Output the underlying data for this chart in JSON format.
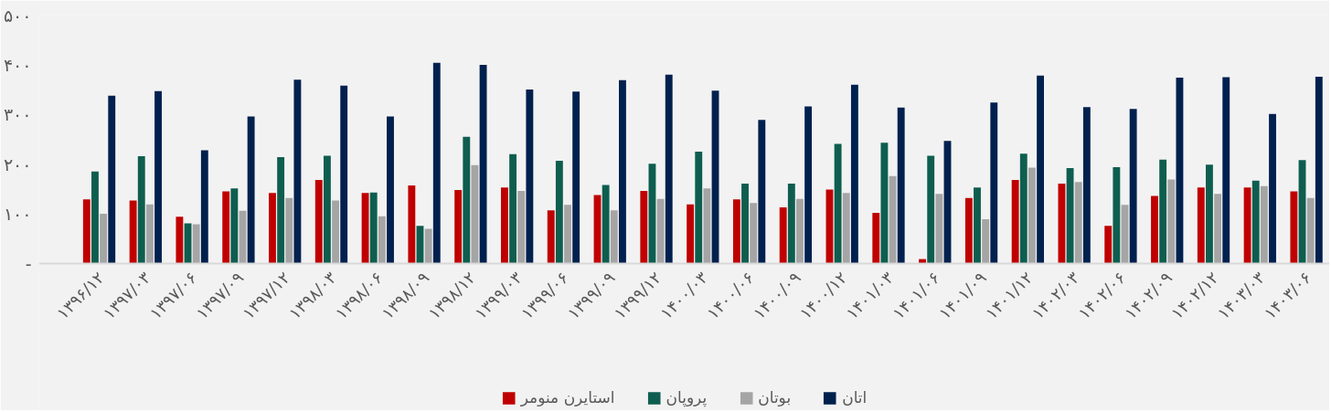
{
  "chart_data": {
    "type": "bar",
    "categories": [
      "۱۳۹۶/۱۲",
      "۱۳۹۷/۰۳",
      "۱۳۹۷/۰۶",
      "۱۳۹۷/۰۹",
      "۱۳۹۷/۱۲",
      "۱۳۹۸/۰۳",
      "۱۳۹۸/۰۶",
      "۱۳۹۸/۰۹",
      "۱۳۹۸/۱۲",
      "۱۳۹۹/۰۳",
      "۱۳۹۹/۰۶",
      "۱۳۹۹/۰۹",
      "۱۳۹۹/۱۲",
      "۱۴۰۰/۰۳",
      "۱۴۰۰/۰۶",
      "۱۴۰۰/۰۹",
      "۱۴۰۰/۱۲",
      "۱۴۰۱/۰۳",
      "۱۴۰۱/۰۶",
      "۱۴۰۱/۰۹",
      "۱۴۰۱/۱۲",
      "۱۴۰۲/۰۳",
      "۱۴۰۲/۰۶",
      "۱۴۰۲/۰۹",
      "۱۴۰۲/۱۲",
      "۱۴۰۳/۰۳",
      "۱۴۰۳/۰۶"
    ],
    "series": [
      {
        "name": "استایرن منومر",
        "color": "#c00000",
        "values": [
          129,
          127,
          94,
          145,
          142,
          168,
          142,
          157,
          148,
          153,
          107,
          138,
          146,
          119,
          129,
          113,
          149,
          102,
          9,
          132,
          168,
          161,
          76,
          136,
          153,
          153,
          145
        ]
      },
      {
        "name": "پروپان",
        "color": "#0e5e4f",
        "values": [
          185,
          216,
          81,
          151,
          214,
          217,
          143,
          76,
          255,
          220,
          207,
          158,
          201,
          225,
          161,
          161,
          241,
          243,
          217,
          153,
          221,
          192,
          194,
          209,
          199,
          167,
          208
        ]
      },
      {
        "name": "بوتان",
        "color": "#a5a5a5",
        "values": [
          100,
          119,
          79,
          106,
          132,
          127,
          95,
          70,
          198,
          146,
          118,
          107,
          130,
          151,
          122,
          130,
          142,
          176,
          140,
          89,
          193,
          164,
          118,
          169,
          140,
          156,
          132
        ]
      },
      {
        "name": "اتان",
        "color": "#00204e",
        "values": [
          338,
          347,
          228,
          296,
          370,
          358,
          296,
          404,
          400,
          350,
          346,
          369,
          380,
          348,
          289,
          316,
          360,
          314,
          247,
          324,
          378,
          315,
          311,
          374,
          375,
          301,
          376
        ]
      }
    ],
    "ylim": [
      0,
      500
    ],
    "yticks": [
      {
        "value": 0,
        "label": "-"
      },
      {
        "value": 100,
        "label": "۱۰۰"
      },
      {
        "value": 200,
        "label": "۲۰۰"
      },
      {
        "value": 300,
        "label": "۳۰۰"
      },
      {
        "value": 400,
        "label": "۴۰۰"
      },
      {
        "value": 500,
        "label": "۵۰۰"
      }
    ],
    "legend": "bottom"
  }
}
